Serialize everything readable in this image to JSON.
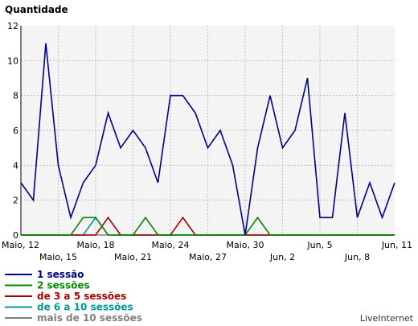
{
  "chart_data": {
    "type": "line",
    "title": "Quantidade",
    "source_label": "LiveInternet",
    "ylim": [
      0,
      12
    ],
    "y_ticks": [
      0,
      2,
      4,
      6,
      8,
      10,
      12
    ],
    "grid": true,
    "legend_position": "bottom-left",
    "x": [
      "Maio, 12",
      "Maio, 13",
      "Maio, 14",
      "Maio, 15",
      "Maio, 16",
      "Maio, 17",
      "Maio, 18",
      "Maio, 19",
      "Maio, 20",
      "Maio, 21",
      "Maio, 22",
      "Maio, 23",
      "Maio, 24",
      "Maio, 25",
      "Maio, 26",
      "Maio, 27",
      "Maio, 28",
      "Maio, 29",
      "Maio, 30",
      "Maio, 31",
      "Jun, 1",
      "Jun, 2",
      "Jun, 3",
      "Jun, 4",
      "Jun, 5",
      "Jun, 6",
      "Jun, 7",
      "Jun, 8",
      "Jun, 9",
      "Jun, 10",
      "Jun, 11"
    ],
    "x_tick_labels_row1": [
      {
        "label": "Maio, 12",
        "index": 0
      },
      {
        "label": "Maio, 18",
        "index": 6
      },
      {
        "label": "Maio, 24",
        "index": 12
      },
      {
        "label": "Maio, 30",
        "index": 18
      },
      {
        "label": "Jun, 5",
        "index": 24
      },
      {
        "label": "Jun, 11",
        "index": 30
      }
    ],
    "x_tick_labels_row2": [
      {
        "label": "Maio, 15",
        "index": 3
      },
      {
        "label": "Maio, 21",
        "index": 9
      },
      {
        "label": "Maio, 27",
        "index": 15
      },
      {
        "label": "Jun, 2",
        "index": 21
      },
      {
        "label": "Jun, 8",
        "index": 27
      }
    ],
    "series": [
      {
        "name": "mais de 10 sessões",
        "color": "#808080",
        "values": [
          0,
          0,
          0,
          0,
          0,
          0,
          0,
          0,
          0,
          0,
          0,
          0,
          0,
          0,
          0,
          0,
          0,
          0,
          0,
          0,
          0,
          0,
          0,
          0,
          0,
          0,
          0,
          0,
          0,
          0,
          0
        ]
      },
      {
        "name": "de 6 a 10 sessões",
        "color": "#009999",
        "values": [
          0,
          0,
          0,
          0,
          0,
          0,
          1,
          0,
          0,
          0,
          0,
          0,
          0,
          0,
          0,
          0,
          0,
          0,
          0,
          0,
          0,
          0,
          0,
          0,
          0,
          0,
          0,
          0,
          0,
          0,
          0
        ]
      },
      {
        "name": "de 3 a 5 sessões",
        "color": "#aa0000",
        "values": [
          0,
          0,
          0,
          0,
          0,
          0,
          0,
          1,
          0,
          0,
          0,
          0,
          0,
          1,
          0,
          0,
          0,
          0,
          0,
          0,
          0,
          0,
          0,
          0,
          0,
          0,
          0,
          0,
          0,
          0,
          0
        ]
      },
      {
        "name": "2 sessões",
        "color": "#008800",
        "values": [
          0,
          0,
          0,
          0,
          0,
          1,
          1,
          0,
          0,
          0,
          1,
          0,
          0,
          0,
          0,
          0,
          0,
          0,
          0,
          1,
          0,
          0,
          0,
          0,
          0,
          0,
          0,
          0,
          0,
          0,
          0
        ]
      },
      {
        "name": "1 sessão",
        "color": "#000088",
        "values": [
          3,
          2,
          11,
          4,
          1,
          3,
          4,
          7,
          5,
          6,
          5,
          3,
          8,
          8,
          7,
          5,
          6,
          4,
          0,
          5,
          8,
          5,
          6,
          9,
          1,
          1,
          7,
          1,
          3,
          1,
          3
        ]
      }
    ]
  }
}
